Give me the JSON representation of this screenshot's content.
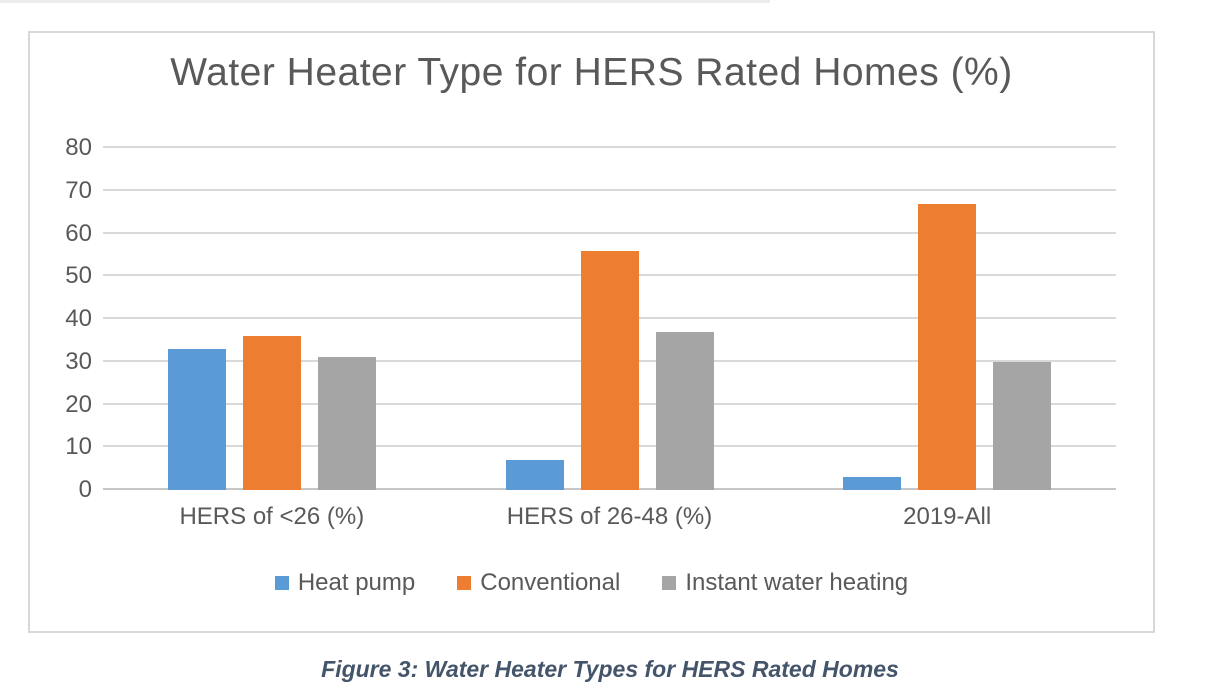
{
  "page": {
    "caption": "Figure 3: Water Heater Types for HERS Rated Homes"
  },
  "chart_data": {
    "type": "bar",
    "title": "Water Heater Type for HERS Rated Homes (%)",
    "categories": [
      "HERS of <26 (%)",
      "HERS of 26-48 (%)",
      "2019-All"
    ],
    "series": [
      {
        "name": "Heat pump",
        "color": "#5B9BD5",
        "values": [
          33,
          7,
          3
        ]
      },
      {
        "name": "Conventional",
        "color": "#ED7D31",
        "values": [
          36,
          56,
          67
        ]
      },
      {
        "name": "Instant water heating",
        "color": "#A5A5A5",
        "values": [
          31,
          37,
          30
        ]
      }
    ],
    "ylim": [
      0,
      80
    ],
    "yticks": [
      0,
      10,
      20,
      30,
      40,
      50,
      60,
      70,
      80
    ],
    "grid": true,
    "legend_position": "bottom",
    "xlabel": "",
    "ylabel": ""
  },
  "colors": {
    "text": "#595959",
    "grid": "#D9D9D9",
    "axis_line": "#C6C6C6",
    "frame_border": "#D8D8D8",
    "caption_text": "#44546A"
  }
}
